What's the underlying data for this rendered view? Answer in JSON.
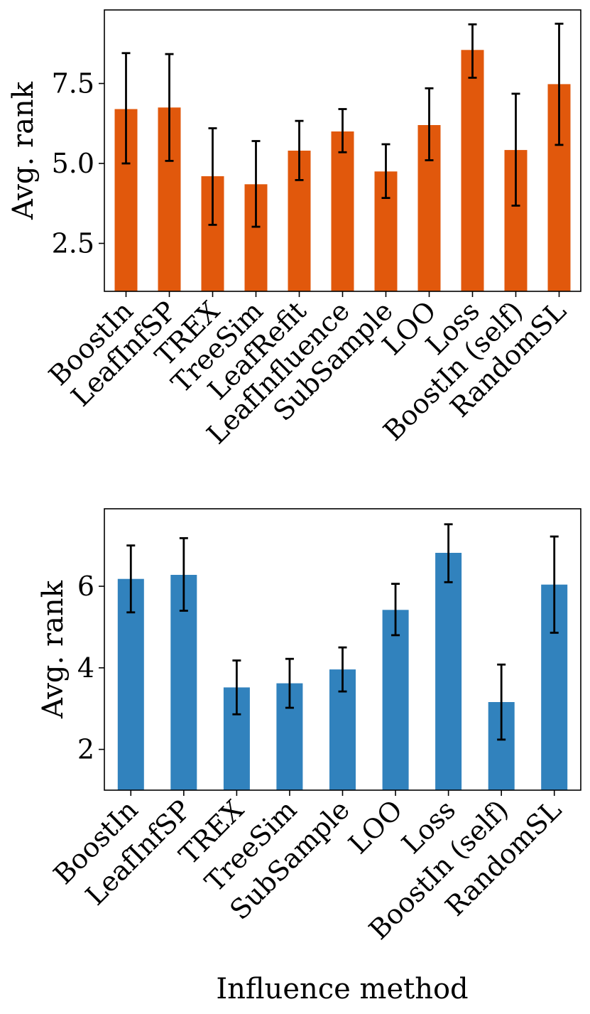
{
  "chart_data": [
    {
      "type": "bar",
      "title": "",
      "xlabel": "",
      "ylabel": "Avg. rank",
      "color": "#e1580c",
      "ylim": [
        1.0,
        9.8
      ],
      "yticks": [
        2.5,
        5.0,
        7.5
      ],
      "ytick_labels": [
        "2.5",
        "5.0",
        "7.5"
      ],
      "categories": [
        "BoostIn",
        "LeafInfSP",
        "TREX",
        "TreeSim",
        "LeafRefit",
        "LeafInfluence",
        "SubSample",
        "LOO",
        "Loss",
        "BoostIn (self)",
        "RandomSL"
      ],
      "values": [
        6.7,
        6.75,
        4.6,
        4.35,
        5.4,
        6.0,
        4.75,
        6.2,
        8.55,
        5.42,
        7.48
      ],
      "err_low": [
        5.0,
        5.08,
        3.08,
        3.02,
        4.48,
        5.35,
        3.92,
        5.1,
        7.68,
        3.68,
        5.58
      ],
      "err_high": [
        8.45,
        8.42,
        6.1,
        5.7,
        6.33,
        6.7,
        5.6,
        7.35,
        9.35,
        7.18,
        9.37
      ]
    },
    {
      "type": "bar",
      "title": "",
      "xlabel": "Influence method",
      "ylabel": "Avg. rank",
      "color": "#3182bd",
      "ylim": [
        1.0,
        7.9
      ],
      "yticks": [
        2,
        4,
        6
      ],
      "ytick_labels": [
        "2",
        "4",
        "6"
      ],
      "categories": [
        "BoostIn",
        "LeafInfSP",
        "TREX",
        "TreeSim",
        "SubSample",
        "LOO",
        "Loss",
        "BoostIn (self)",
        "RandomSL"
      ],
      "values": [
        6.18,
        6.28,
        3.52,
        3.62,
        3.96,
        5.42,
        6.82,
        3.16,
        6.04
      ],
      "err_low": [
        5.36,
        5.4,
        2.86,
        3.02,
        3.42,
        4.8,
        6.1,
        2.24,
        4.86
      ],
      "err_high": [
        7.0,
        7.18,
        4.18,
        4.22,
        4.5,
        6.06,
        7.52,
        4.08,
        7.22
      ]
    }
  ]
}
